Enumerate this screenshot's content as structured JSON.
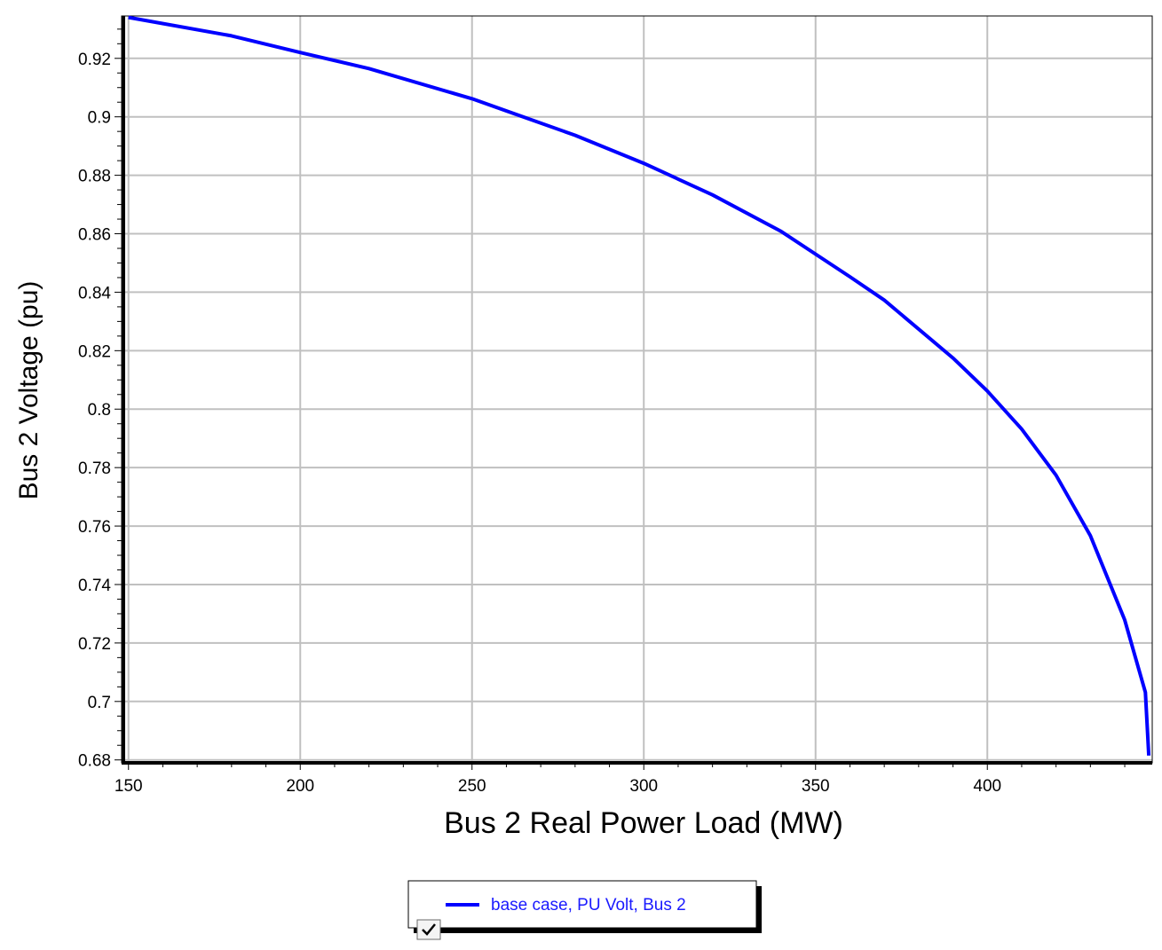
{
  "chart_data": {
    "type": "line",
    "xlabel": "Bus 2 Real Power Load (MW)",
    "ylabel": "Bus 2 Voltage (pu)",
    "xlim": [
      148,
      448
    ],
    "ylim": [
      0.679,
      0.9345
    ],
    "x_ticks": [
      150,
      200,
      250,
      300,
      350,
      400
    ],
    "y_ticks": [
      0.68,
      0.7,
      0.72,
      0.74,
      0.76,
      0.78,
      0.8,
      0.82,
      0.84,
      0.86,
      0.88,
      0.9,
      0.92
    ],
    "x_tick_labels": [
      "150",
      "200",
      "250",
      "300",
      "350",
      "400"
    ],
    "y_tick_labels": [
      "0.68",
      "0.7",
      "0.72",
      "0.74",
      "0.76",
      "0.78",
      "0.8",
      "0.82",
      "0.84",
      "0.86",
      "0.88",
      "0.9",
      "0.92"
    ],
    "grid": true,
    "legend_position": "bottom-center",
    "series": [
      {
        "name": "base case, PU Volt, Bus 2",
        "color": "#0000ff",
        "x": [
          150,
          180,
          200,
          220,
          250,
          280,
          300,
          320,
          340,
          360,
          370,
          390,
          400,
          410,
          420,
          430,
          440,
          446,
          447
        ],
        "y": [
          0.934,
          0.9277,
          0.922,
          0.9165,
          0.9062,
          0.8937,
          0.8841,
          0.8733,
          0.8608,
          0.8453,
          0.8373,
          0.8175,
          0.8062,
          0.7932,
          0.7774,
          0.7567,
          0.7279,
          0.7031,
          0.6815
        ]
      }
    ]
  },
  "legend": {
    "series_label": "base case, PU Volt, Bus 2",
    "checkbox_checked": true
  }
}
